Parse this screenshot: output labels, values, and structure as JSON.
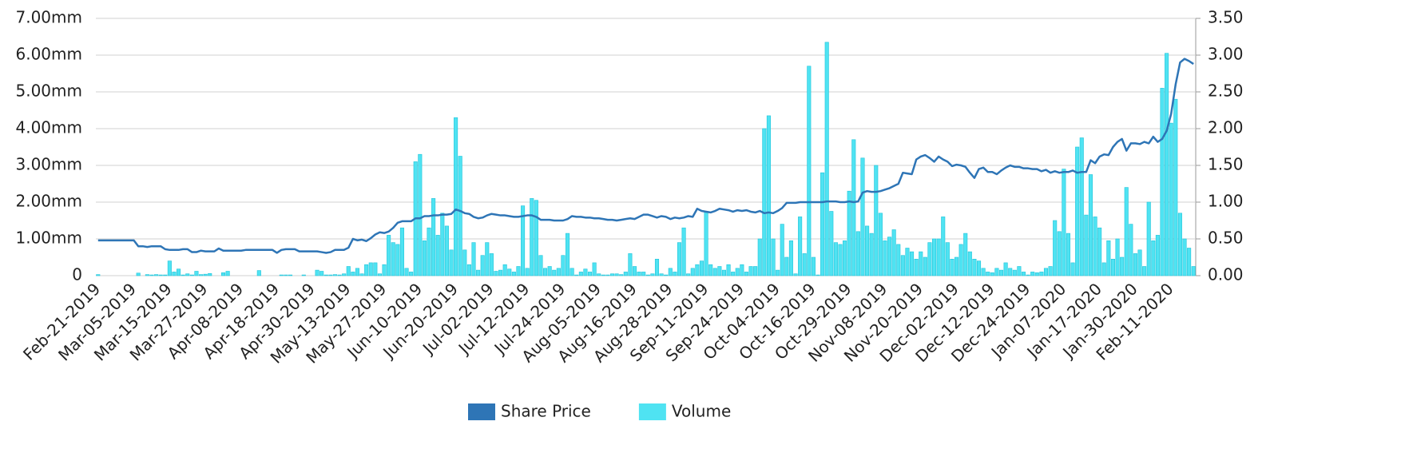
{
  "chart_data": {
    "type": "combo",
    "categories": [
      "Feb-21-2019",
      null,
      null,
      null,
      null,
      null,
      null,
      null,
      "Mar-05-2019",
      null,
      null,
      null,
      null,
      null,
      null,
      null,
      "Mar-15-2019",
      null,
      null,
      null,
      null,
      null,
      null,
      null,
      "Mar-27-2019",
      null,
      null,
      null,
      null,
      null,
      null,
      null,
      "Apr-08-2019",
      null,
      null,
      null,
      null,
      null,
      null,
      null,
      "Apr-18-2019",
      null,
      null,
      null,
      null,
      null,
      null,
      null,
      "Apr-30-2019",
      null,
      null,
      null,
      null,
      null,
      null,
      null,
      "May-13-2019",
      null,
      null,
      null,
      null,
      null,
      null,
      null,
      "May-27-2019",
      null,
      null,
      null,
      null,
      null,
      null,
      null,
      "Jun-10-2019",
      null,
      null,
      null,
      null,
      null,
      null,
      null,
      "Jun-20-2019",
      null,
      null,
      null,
      null,
      null,
      null,
      null,
      "Jul-02-2019",
      null,
      null,
      null,
      null,
      null,
      null,
      null,
      "Jul-12-2019",
      null,
      null,
      null,
      null,
      null,
      null,
      null,
      "Jul-24-2019",
      null,
      null,
      null,
      null,
      null,
      null,
      null,
      "Aug-05-2019",
      null,
      null,
      null,
      null,
      null,
      null,
      null,
      "Aug-16-2019",
      null,
      null,
      null,
      null,
      null,
      null,
      null,
      "Aug-28-2019",
      null,
      null,
      null,
      null,
      null,
      null,
      null,
      "Sep-11-2019",
      null,
      null,
      null,
      null,
      null,
      null,
      null,
      "Sep-24-2019",
      null,
      null,
      null,
      null,
      null,
      null,
      null,
      "Oct-04-2019",
      null,
      null,
      null,
      null,
      null,
      null,
      null,
      "Oct-16-2019",
      null,
      null,
      null,
      null,
      null,
      null,
      null,
      "Oct-29-2019",
      null,
      null,
      null,
      null,
      null,
      null,
      null,
      "Nov-08-2019",
      null,
      null,
      null,
      null,
      null,
      null,
      null,
      "Nov-20-2019",
      null,
      null,
      null,
      null,
      null,
      null,
      null,
      "Dec-02-2019",
      null,
      null,
      null,
      null,
      null,
      null,
      null,
      "Dec-12-2019",
      null,
      null,
      null,
      null,
      null,
      null,
      null,
      "Dec-24-2019",
      null,
      null,
      null,
      null,
      null,
      null,
      null,
      "Jan-07-2020",
      null,
      null,
      null,
      null,
      null,
      null,
      null,
      "Jan-17-2020",
      null,
      null,
      null,
      null,
      null,
      null,
      null,
      "Jan-30-2020",
      null,
      null,
      null,
      null,
      null,
      null,
      null,
      "Feb-11-2020",
      null,
      null,
      null,
      null,
      null
    ],
    "series": [
      {
        "name": "Share Price",
        "type": "line",
        "axis": "y2",
        "color": "#2e75b6",
        "values": [
          0.48,
          0.48,
          0.48,
          0.48,
          0.48,
          0.48,
          0.48,
          0.48,
          0.48,
          0.4,
          0.4,
          0.39,
          0.4,
          0.4,
          0.4,
          0.36,
          0.35,
          0.35,
          0.35,
          0.36,
          0.36,
          0.32,
          0.32,
          0.34,
          0.33,
          0.33,
          0.33,
          0.37,
          0.34,
          0.34,
          0.34,
          0.34,
          0.34,
          0.35,
          0.35,
          0.35,
          0.35,
          0.35,
          0.35,
          0.35,
          0.31,
          0.35,
          0.36,
          0.36,
          0.36,
          0.33,
          0.33,
          0.33,
          0.33,
          0.33,
          0.32,
          0.31,
          0.32,
          0.35,
          0.35,
          0.35,
          0.38,
          0.5,
          0.48,
          0.49,
          0.47,
          0.51,
          0.56,
          0.59,
          0.58,
          0.6,
          0.65,
          0.72,
          0.74,
          0.74,
          0.74,
          0.78,
          0.78,
          0.81,
          0.81,
          0.82,
          0.82,
          0.83,
          0.83,
          0.84,
          0.9,
          0.88,
          0.85,
          0.84,
          0.8,
          0.78,
          0.79,
          0.82,
          0.84,
          0.83,
          0.82,
          0.82,
          0.81,
          0.8,
          0.8,
          0.81,
          0.82,
          0.82,
          0.8,
          0.76,
          0.76,
          0.76,
          0.75,
          0.75,
          0.75,
          0.77,
          0.81,
          0.8,
          0.8,
          0.79,
          0.79,
          0.78,
          0.78,
          0.77,
          0.76,
          0.76,
          0.75,
          0.76,
          0.77,
          0.78,
          0.77,
          0.8,
          0.83,
          0.83,
          0.81,
          0.79,
          0.81,
          0.8,
          0.77,
          0.79,
          0.78,
          0.79,
          0.81,
          0.8,
          0.91,
          0.88,
          0.87,
          0.86,
          0.88,
          0.91,
          0.9,
          0.89,
          0.87,
          0.89,
          0.88,
          0.89,
          0.87,
          0.86,
          0.88,
          0.85,
          0.86,
          0.85,
          0.88,
          0.92,
          0.99,
          0.99,
          0.99,
          1.0,
          1.0,
          1.0,
          1.0,
          1.0,
          1.0,
          1.01,
          1.01,
          1.01,
          1.0,
          1.0,
          1.01,
          1.0,
          1.01,
          1.13,
          1.15,
          1.14,
          1.14,
          1.15,
          1.17,
          1.19,
          1.22,
          1.25,
          1.4,
          1.39,
          1.38,
          1.58,
          1.62,
          1.64,
          1.6,
          1.55,
          1.62,
          1.58,
          1.55,
          1.49,
          1.51,
          1.5,
          1.48,
          1.4,
          1.33,
          1.45,
          1.47,
          1.41,
          1.41,
          1.38,
          1.43,
          1.47,
          1.5,
          1.48,
          1.48,
          1.46,
          1.46,
          1.45,
          1.45,
          1.42,
          1.44,
          1.4,
          1.42,
          1.4,
          1.41,
          1.41,
          1.43,
          1.4,
          1.41,
          1.41,
          1.57,
          1.53,
          1.62,
          1.65,
          1.64,
          1.75,
          1.82,
          1.86,
          1.7,
          1.8,
          1.8,
          1.79,
          1.82,
          1.8,
          1.89,
          1.82,
          1.86,
          1.97,
          2.2,
          2.6,
          2.9,
          2.95,
          2.92,
          2.88
        ]
      },
      {
        "name": "Volume",
        "type": "bar",
        "color": "#4fe3f2",
        "values": [
          0.03,
          0,
          0,
          0,
          0,
          0,
          0,
          0,
          0,
          0.07,
          0,
          0.03,
          0.02,
          0.03,
          0.02,
          0.02,
          0.4,
          0.1,
          0.18,
          0.02,
          0.05,
          0.02,
          0.12,
          0.03,
          0.04,
          0.06,
          0,
          0,
          0.08,
          0.12,
          0,
          0,
          0,
          0,
          0,
          0,
          0.14,
          0,
          0,
          0,
          0,
          0.02,
          0.02,
          0.02,
          0,
          0,
          0.02,
          0,
          0,
          0.15,
          0.12,
          0.02,
          0.02,
          0.03,
          0.02,
          0.05,
          0.25,
          0.1,
          0.2,
          0.05,
          0.3,
          0.35,
          0.35,
          0.05,
          0.3,
          1.1,
          0.9,
          0.85,
          1.3,
          0.2,
          0.1,
          3.1,
          3.3,
          0.95,
          1.3,
          2.1,
          1.1,
          1.7,
          1.35,
          0.7,
          4.3,
          3.25,
          0.7,
          0.3,
          0.9,
          0.15,
          0.55,
          0.9,
          0.6,
          0.12,
          0.15,
          0.3,
          0.18,
          0.1,
          0.25,
          1.9,
          0.2,
          2.1,
          2.05,
          0.55,
          0.2,
          0.25,
          0.15,
          0.2,
          0.55,
          1.15,
          0.2,
          0.02,
          0.1,
          0.18,
          0.1,
          0.35,
          0.05,
          0.02,
          0.02,
          0.05,
          0.05,
          0.03,
          0.1,
          0.6,
          0.25,
          0.1,
          0.1,
          0.02,
          0.05,
          0.45,
          0.05,
          0.02,
          0.2,
          0.1,
          0.9,
          1.3,
          0.05,
          0.2,
          0.3,
          0.4,
          1.75,
          0.3,
          0.2,
          0.25,
          0.15,
          0.3,
          0.1,
          0.2,
          0.3,
          0.1,
          0.25,
          0.25,
          1.0,
          4.0,
          4.35,
          1.0,
          0.15,
          1.4,
          0.5,
          0.95,
          0.05,
          1.6,
          0.6,
          5.7,
          0.5,
          0.02,
          2.8,
          6.35,
          1.75,
          0.9,
          0.85,
          0.95,
          2.3,
          3.7,
          1.2,
          3.2,
          1.35,
          1.15,
          3.0,
          1.7,
          0.95,
          1.05,
          1.25,
          0.85,
          0.55,
          0.75,
          0.65,
          0.45,
          0.65,
          0.5,
          0.9,
          1.0,
          1.0,
          1.6,
          0.9,
          0.45,
          0.5,
          0.85,
          1.15,
          0.65,
          0.45,
          0.4,
          0.2,
          0.1,
          0.08,
          0.2,
          0.15,
          0.35,
          0.2,
          0.15,
          0.25,
          0.1,
          0.02,
          0.1,
          0.08,
          0.1,
          0.2,
          0.25,
          1.5,
          1.2,
          2.9,
          1.15,
          0.35,
          3.5,
          3.75,
          1.65,
          2.75,
          1.6,
          1.3,
          0.35,
          0.95,
          0.45,
          1.0,
          0.5,
          2.4,
          1.4,
          0.6,
          0.7,
          0.25,
          2.0,
          0.95,
          1.1,
          5.1,
          6.05,
          4.15,
          4.8,
          1.7,
          1.0,
          0.75,
          0.25
        ]
      }
    ],
    "ylim": [
      0,
      7
    ],
    "yticks": [
      0,
      {
        "value": 1,
        "label": "1.00mm"
      },
      {
        "value": 2,
        "label": "2.00mm"
      },
      {
        "value": 3,
        "label": "3.00mm"
      },
      {
        "value": 4,
        "label": "4.00mm"
      },
      {
        "value": 5,
        "label": "5.00mm"
      },
      {
        "value": 6,
        "label": "6.00mm"
      },
      {
        "value": 7,
        "label": "7.00mm"
      }
    ],
    "y2lim": [
      0,
      3.5
    ],
    "y2ticks": [
      {
        "value": 0,
        "label": "0.00"
      },
      {
        "value": 0.5,
        "label": "0.50"
      },
      {
        "value": 1,
        "label": "1.00"
      },
      {
        "value": 1.5,
        "label": "1.50"
      },
      {
        "value": 2,
        "label": "2.00"
      },
      {
        "value": 2.5,
        "label": "2.50"
      },
      {
        "value": 3,
        "label": "3.00"
      },
      {
        "value": 3.5,
        "label": "3.50"
      }
    ],
    "grid": true,
    "legend": "bottom"
  }
}
